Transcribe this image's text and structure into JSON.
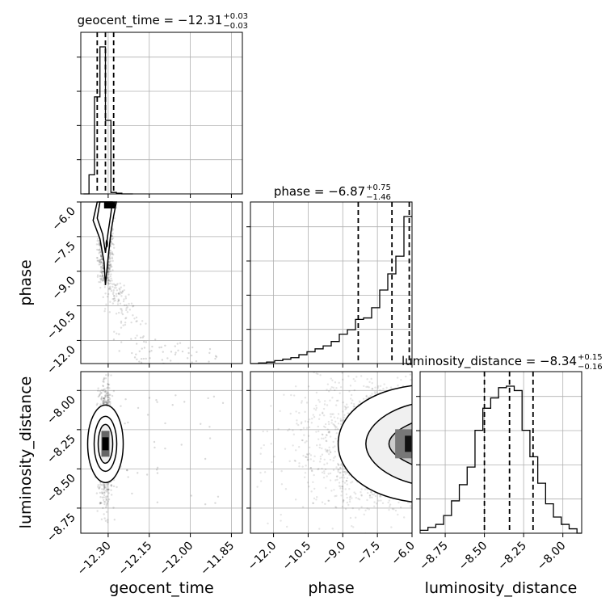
{
  "chart_data": {
    "type": "corner",
    "parameters": [
      "geocent_time",
      "phase",
      "luminosity_distance"
    ],
    "titles": [
      {
        "param": "geocent_time",
        "prefix": "geocent_time = −12.31",
        "plus": "+0.03",
        "minus": "−0.03",
        "median": -12.31,
        "q16": -12.34,
        "q84": -12.28
      },
      {
        "param": "phase",
        "prefix": "phase = −6.87",
        "plus": "+0.75",
        "minus": "−1.46",
        "median": -6.87,
        "q16": -8.33,
        "q84": -6.12
      },
      {
        "param": "luminosity_distance",
        "prefix": "luminosity_distance = −8.34",
        "plus": "+0.15",
        "minus": "−0.16",
        "median": -8.34,
        "q16": -8.5,
        "q84": -8.19
      }
    ],
    "ranges": {
      "geocent_time": [
        -12.4,
        -11.81
      ],
      "phase": [
        -13.0,
        -6.0
      ],
      "luminosity_distance": [
        -8.91,
        -7.88
      ]
    },
    "ticks": {
      "geocent_time": {
        "values": [
          -12.3,
          -12.15,
          -12.0,
          -11.85
        ],
        "labels": [
          "−12.30",
          "−12.15",
          "−12.00",
          "−11.85"
        ]
      },
      "phase": {
        "values": [
          -12.0,
          -10.5,
          -9.0,
          -7.5,
          -6.0
        ],
        "labels": [
          "−12.0",
          "−10.5",
          "−9.0",
          "−7.5",
          "−6.0"
        ]
      },
      "luminosity_distance": {
        "values": [
          -8.75,
          -8.5,
          -8.25,
          -8.0
        ],
        "labels": [
          "−8.75",
          "−8.50",
          "−8.25",
          "−8.00"
        ]
      }
    },
    "histograms": {
      "geocent_time": {
        "edges": [
          -12.39,
          -12.37,
          -12.35,
          -12.33,
          -12.31,
          -12.29,
          -12.27,
          -12.25,
          -12.23,
          -12.21
        ],
        "counts": [
          0.0,
          0.13,
          0.66,
          1.0,
          0.5,
          0.01,
          0.005,
          0.0,
          0.0
        ]
      },
      "phase": {
        "edges": [
          -13.0,
          -12.65,
          -12.3,
          -11.95,
          -11.6,
          -11.25,
          -10.9,
          -10.55,
          -10.2,
          -9.85,
          -9.5,
          -9.15,
          -8.8,
          -8.45,
          -8.1,
          -7.75,
          -7.4,
          -7.05,
          -6.7,
          -6.35,
          -6.0
        ],
        "counts": [
          0.0,
          0.004,
          0.01,
          0.02,
          0.03,
          0.04,
          0.06,
          0.08,
          0.1,
          0.12,
          0.15,
          0.2,
          0.23,
          0.3,
          0.31,
          0.38,
          0.5,
          0.61,
          0.73,
          1.0
        ]
      },
      "luminosity_distance": {
        "edges": [
          -8.91,
          -8.86,
          -8.81,
          -8.76,
          -8.71,
          -8.66,
          -8.61,
          -8.56,
          -8.51,
          -8.46,
          -8.41,
          -8.36,
          -8.31,
          -8.26,
          -8.21,
          -8.16,
          -8.11,
          -8.06,
          -8.01,
          -7.96,
          -7.91,
          -7.88
        ],
        "counts": [
          0.02,
          0.04,
          0.06,
          0.12,
          0.22,
          0.33,
          0.45,
          0.7,
          0.85,
          0.92,
          0.99,
          1.0,
          0.97,
          0.7,
          0.52,
          0.34,
          0.2,
          0.11,
          0.06,
          0.03,
          0.0
        ]
      }
    },
    "axis_labels": {
      "geocent_time": "geocent_time",
      "phase": "phase",
      "luminosity_distance": "luminosity_distance"
    },
    "grid": true
  }
}
